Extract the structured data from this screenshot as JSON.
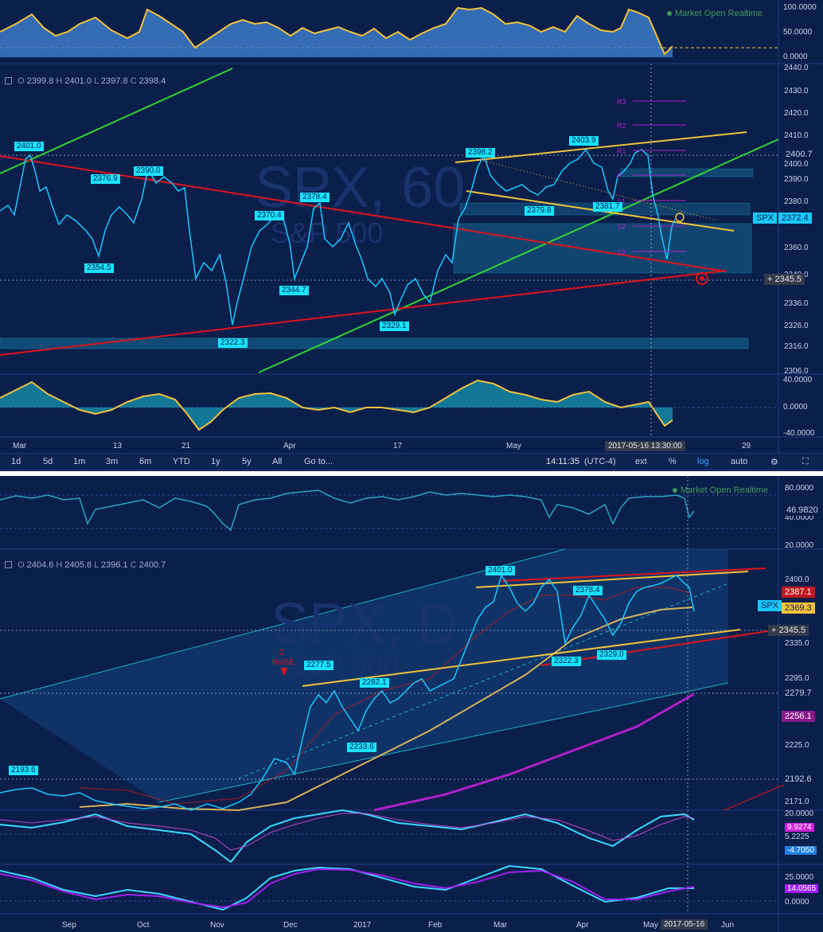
{
  "colors": {
    "background": "#0b1f4b",
    "grid": "#16306b",
    "red_trend": "#e0141c",
    "green_trend": "#2fd433",
    "yellow": "#f2c23a",
    "cyan": "#19e3ff",
    "purple": "#b020c8",
    "candle_body": "#19c8ff"
  },
  "top": {
    "status": "Market Open  Realtime",
    "ohlc": {
      "o_label": "O",
      "o": "2399.8",
      "h_label": "H",
      "h": "2401.0",
      "l_label": "L",
      "l": "2397.8",
      "c_label": "C",
      "c": "2398.4"
    },
    "symbol_tag": "SPX",
    "last_price": "2372.4",
    "level_tag": "2400.7",
    "cross_price": "2345.5",
    "crosshair_date": "2017-05-16 13:30:00",
    "watermark": "SPX, 60",
    "watermark_sub": "S&P 500",
    "pivots": [
      "R3",
      "R2",
      "R1",
      "P",
      "S1",
      "S2",
      "S3"
    ],
    "x_ticks": [
      "Mar",
      "13",
      "21",
      "Apr",
      "17",
      "May",
      "29"
    ],
    "price_ticks": [
      "2440.0",
      "2430.0",
      "2420.0",
      "2410.0",
      "2400.0",
      "2390.0",
      "2380.0",
      "2370.0",
      "2360.0",
      "2340.0",
      "2336.0",
      "2326.0",
      "2316.0",
      "2306.0"
    ],
    "top_osc_ticks": [
      "100.0000",
      "50.0000",
      "0.0000"
    ],
    "bottom_osc_ticks": [
      "40.0000",
      "0.0000",
      "-40.0000"
    ],
    "callouts": [
      "2401.0",
      "2390.0",
      "2376.9",
      "2354.5",
      "2322.3",
      "2378.4",
      "2370.4",
      "2344.7",
      "2329.1",
      "2398.2",
      "2379.8",
      "2403.9",
      "2381.7"
    ]
  },
  "toolbar": {
    "ranges": [
      "1d",
      "5d",
      "1m",
      "3m",
      "6m",
      "YTD",
      "1y",
      "5y",
      "All"
    ],
    "goto": "Go to...",
    "time": "14:11:35",
    "tz": "(UTC-4)",
    "ext": "ext",
    "pct": "%",
    "log": "log",
    "auto": "auto"
  },
  "bottom": {
    "status": "Market Open  Realtime",
    "ohlc": {
      "o_label": "O",
      "o": "2404.6",
      "h_label": "H",
      "h": "2405.8",
      "l_label": "L",
      "l": "2396.1",
      "c_label": "C",
      "c": "2400.7"
    },
    "symbol_tag": "SPX",
    "last_price": "2369.3",
    "red_tag": "2387.1",
    "cross_price": "2345.5",
    "tag_2279": "2279.7",
    "tag_2256": "2256.1",
    "tag_2192": "2192.6",
    "rsi_value": "46.9820",
    "crosshair_date": "2017-05-16",
    "watermark": "SPX, D",
    "watermark_sub": "S&P 500",
    "rsise_label_1": "-2",
    "rsise_label_2": "RsiSE",
    "x_ticks": [
      "Sep",
      "Oct",
      "Nov",
      "Dec",
      "2017",
      "Feb",
      "Mar",
      "Apr",
      "May",
      "Jun"
    ],
    "rsi_ticks": [
      "80.0000",
      "40.0000",
      "20.0000"
    ],
    "price_ticks": [
      "2400.0",
      "2335.0",
      "2295.0",
      "2225.0",
      "2171.0"
    ],
    "macd_ticks": [
      "20.0000",
      "9.9274",
      "5.2225",
      "-4.7050"
    ],
    "osc2_ticks": [
      "25.0000",
      "14.0565",
      "0.0000"
    ],
    "callouts": [
      "2401.0",
      "2378.4",
      "2322.3",
      "2329.0",
      "2277.5",
      "2282.1",
      "2233.6",
      "2193.6"
    ]
  }
}
